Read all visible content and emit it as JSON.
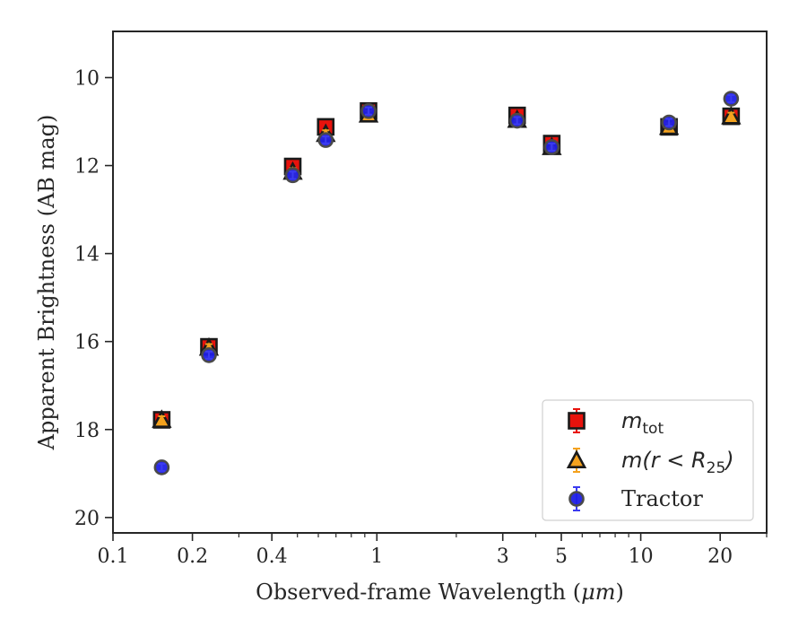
{
  "chart_data": {
    "type": "scatter",
    "xlabel_main": "Observed-frame Wavelength (",
    "xlabel_unit": "μm",
    "xlabel_close": ")",
    "ylabel": "Apparent Brightness (AB mag)",
    "xscale": "log",
    "xlim": [
      0.1,
      30
    ],
    "ylim": [
      20.35,
      8.95
    ],
    "y_inverted": true,
    "x_ticks": [
      0.1,
      0.2,
      0.4,
      1,
      3,
      5,
      10,
      20
    ],
    "x_tick_labels": [
      "0.1",
      "0.2",
      "0.4",
      "1",
      "3",
      "5",
      "10",
      "20"
    ],
    "y_ticks": [
      10,
      12,
      14,
      16,
      18,
      20
    ],
    "y_tick_labels": [
      "10",
      "12",
      "14",
      "16",
      "18",
      "20"
    ],
    "legend_position": "lower-right",
    "series": [
      {
        "name": "m_tot",
        "legend_label_parts": [
          "m",
          "tot"
        ],
        "marker": "square",
        "color": "#e8120c",
        "errcolor": "#e8120c",
        "x": [
          0.153,
          0.231,
          0.48,
          0.64,
          0.93,
          3.4,
          4.6,
          12.8,
          22.0
        ],
        "y": [
          17.78,
          16.12,
          12.02,
          11.12,
          10.76,
          10.86,
          11.5,
          11.12,
          10.88
        ]
      },
      {
        "name": "m(r < R_25)",
        "legend_label_parts": [
          "m(r < R",
          "25",
          ")"
        ],
        "marker": "triangle",
        "color": "#f4a21e",
        "errcolor": "#f4a21e",
        "x": [
          0.153,
          0.231,
          0.48,
          0.64,
          0.93,
          3.4,
          4.6,
          12.8,
          22.0
        ],
        "y": [
          17.78,
          16.14,
          12.14,
          11.28,
          10.84,
          10.96,
          11.58,
          11.12,
          10.88
        ]
      },
      {
        "name": "Tractor",
        "legend_label_parts": [
          "Tractor"
        ],
        "marker": "circle",
        "color": "#1f1fe6",
        "errcolor": "#3b3bf0",
        "x": [
          0.153,
          0.231,
          0.48,
          0.64,
          0.93,
          3.4,
          4.6,
          12.8,
          22.0
        ],
        "y": [
          18.86,
          16.31,
          12.22,
          11.42,
          10.76,
          10.98,
          11.58,
          11.02,
          10.48
        ]
      }
    ]
  }
}
